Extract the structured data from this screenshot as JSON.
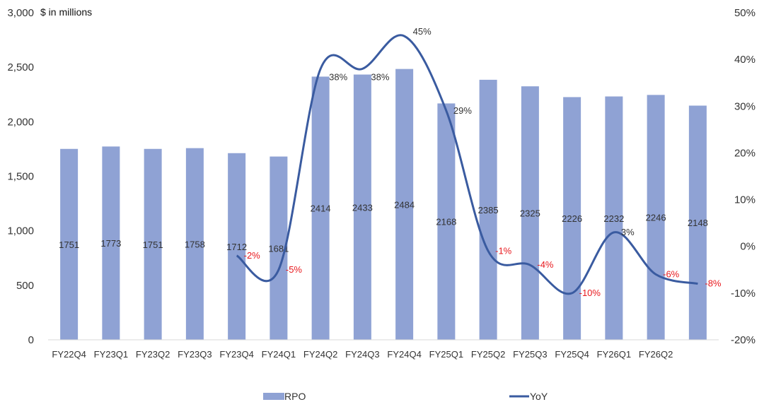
{
  "chart_data": {
    "type": "bar",
    "ylabel": "$ in millions",
    "ylim_left": [
      0,
      3000
    ],
    "ylim_right": [
      -0.2,
      0.5
    ],
    "left_ticks": [
      "0",
      "500",
      "1,000",
      "1,500",
      "2,000",
      "2,500",
      "3,000"
    ],
    "left_tick_values": [
      0,
      500,
      1000,
      1500,
      2000,
      2500,
      3000
    ],
    "right_ticks": [
      "-20%",
      "-10%",
      "0%",
      "10%",
      "20%",
      "30%",
      "40%",
      "50%"
    ],
    "right_tick_values": [
      -0.2,
      -0.1,
      0,
      0.1,
      0.2,
      0.3,
      0.4,
      0.5
    ],
    "categories": [
      "FY22Q4",
      "FY23Q1",
      "FY23Q2",
      "FY23Q3",
      "FY23Q4",
      "FY24Q1",
      "FY24Q2",
      "FY24Q3",
      "FY24Q4",
      "FY25Q1",
      "FY25Q2",
      "FY25Q3",
      "FY25Q4",
      "FY26Q1",
      "FY26Q2",
      ""
    ],
    "series": [
      {
        "name": "RPO",
        "type": "bar",
        "axis": "left",
        "values": [
          1751,
          1773,
          1751,
          1758,
          1712,
          1681,
          2414,
          2433,
          2484,
          2168,
          2385,
          2325,
          2226,
          2232,
          2246,
          2148
        ],
        "labels": [
          "1751",
          "1773",
          "1751",
          "1758",
          "1712",
          "1681",
          "2414",
          "2433",
          "2484",
          "2168",
          "2385",
          "2325",
          "2226",
          "2232",
          "2246",
          "2148"
        ]
      },
      {
        "name": "YoY",
        "type": "line",
        "axis": "right",
        "values": [
          null,
          null,
          null,
          null,
          -0.02,
          -0.05,
          0.38,
          0.38,
          0.45,
          0.29,
          -0.01,
          -0.04,
          -0.1,
          0.03,
          -0.06,
          -0.08
        ],
        "labels": [
          "",
          "",
          "",
          "",
          "-2%",
          "-5%",
          "38%",
          "38%",
          "45%",
          "29%",
          "-1%",
          "-4%",
          "-10%",
          "3%",
          "-6%",
          "-8%"
        ]
      }
    ],
    "legend": {
      "position": "bottom",
      "items": [
        "RPO",
        "YoY"
      ]
    },
    "grid": false,
    "colors": {
      "bar": "#8FA2D4",
      "line": "#3A5BA0",
      "negative_label": "#E8191E",
      "positive_label": "#333333",
      "axis": "#D9D9D9"
    }
  }
}
